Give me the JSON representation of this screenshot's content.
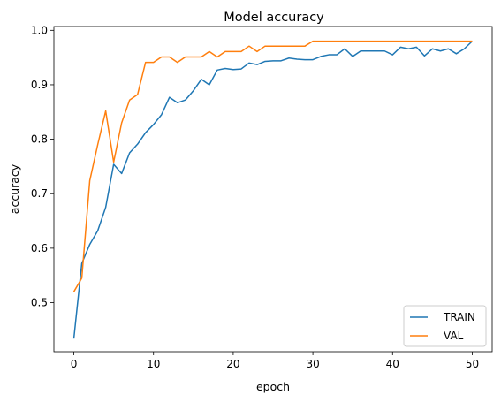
{
  "chart_data": {
    "type": "line",
    "title": "Model accuracy",
    "xlabel": "epoch",
    "ylabel": "accuracy",
    "xlim": [
      -2.5,
      52.5
    ],
    "ylim": [
      0.41,
      1.007
    ],
    "xticks": [
      0,
      10,
      20,
      30,
      40,
      50
    ],
    "yticks": [
      0.5,
      0.6,
      0.7,
      0.8,
      0.9,
      1.0
    ],
    "ytick_labels": [
      "0.5",
      "0.6",
      "0.7",
      "0.8",
      "0.9",
      "1.0"
    ],
    "grid": false,
    "legend_placement": "lower-right",
    "x": [
      0,
      1,
      2,
      3,
      4,
      5,
      6,
      7,
      8,
      9,
      10,
      11,
      12,
      13,
      14,
      15,
      16,
      17,
      18,
      19,
      20,
      21,
      22,
      23,
      24,
      25,
      26,
      27,
      28,
      29,
      30,
      31,
      32,
      33,
      34,
      35,
      36,
      37,
      38,
      39,
      40,
      41,
      42,
      43,
      44,
      45,
      46,
      47,
      48,
      49,
      50
    ],
    "series": [
      {
        "name": "TRAIN",
        "color": "#1f77b4",
        "values": [
          0.434,
          0.572,
          0.607,
          0.632,
          0.675,
          0.754,
          0.737,
          0.775,
          0.791,
          0.812,
          0.827,
          0.845,
          0.877,
          0.867,
          0.872,
          0.889,
          0.91,
          0.9,
          0.927,
          0.93,
          0.928,
          0.929,
          0.94,
          0.937,
          0.943,
          0.944,
          0.944,
          0.949,
          0.947,
          0.946,
          0.946,
          0.952,
          0.955,
          0.955,
          0.966,
          0.952,
          0.962,
          0.962,
          0.962,
          0.962,
          0.955,
          0.969,
          0.966,
          0.969,
          0.953,
          0.966,
          0.962,
          0.966,
          0.957,
          0.966,
          0.98
        ]
      },
      {
        "name": "VAL",
        "color": "#ff7f0e",
        "values": [
          0.52,
          0.545,
          0.724,
          0.79,
          0.852,
          0.758,
          0.83,
          0.872,
          0.882,
          0.941,
          0.941,
          0.951,
          0.951,
          0.941,
          0.951,
          0.951,
          0.951,
          0.961,
          0.951,
          0.961,
          0.961,
          0.961,
          0.971,
          0.961,
          0.971,
          0.971,
          0.971,
          0.971,
          0.971,
          0.971,
          0.98,
          0.98,
          0.98,
          0.98,
          0.98,
          0.98,
          0.98,
          0.98,
          0.98,
          0.98,
          0.98,
          0.98,
          0.98,
          0.98,
          0.98,
          0.98,
          0.98,
          0.98,
          0.98,
          0.98,
          0.98
        ]
      }
    ]
  }
}
